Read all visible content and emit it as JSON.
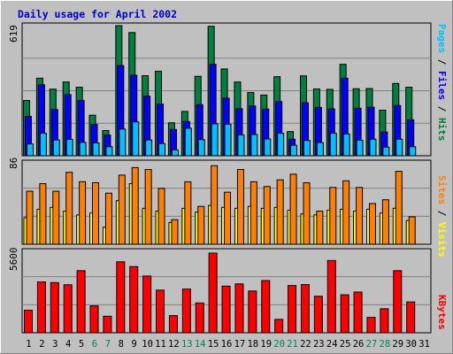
{
  "title": "Daily usage for April 2002",
  "colors": {
    "background": "#c0c0c0",
    "panel": "#c0c0c0",
    "grid": "#808080",
    "title": "#0000cc",
    "hits": "#008040",
    "files": "#0000ff",
    "pages": "#00c0ff",
    "visits": "#ffff00",
    "sites": "#ff8000",
    "kbytes": "#ff0000",
    "weekend_day": "#00805c",
    "weekday": "#000000"
  },
  "right_labels": {
    "top": {
      "pages": "Pages",
      "sep1": " / ",
      "files": "Files",
      "sep2": " / ",
      "hits": "Hits"
    },
    "middle": {
      "sites": "Sites",
      "sep": " / ",
      "visits": "Visits"
    },
    "bottom": {
      "kbytes": "KBytes"
    }
  },
  "chart_data": [
    {
      "type": "bar",
      "title": "Daily usage for April 2002",
      "ymax_label": "619",
      "ylim": [
        0,
        619
      ],
      "categories": [
        "1",
        "2",
        "3",
        "4",
        "5",
        "6",
        "7",
        "8",
        "9",
        "10",
        "11",
        "12",
        "13",
        "14",
        "15",
        "16",
        "17",
        "18",
        "19",
        "20",
        "21",
        "22",
        "23",
        "24",
        "25",
        "26",
        "27",
        "28",
        "29",
        "30",
        "31"
      ],
      "weekend_days": [
        "6",
        "7",
        "13",
        "14",
        "20",
        "21",
        "27",
        "28"
      ],
      "series": [
        {
          "name": "Hits",
          "values": [
            263,
            369,
            317,
            351,
            326,
            193,
            120,
            619,
            586,
            381,
            402,
            157,
            211,
            378,
            616,
            413,
            351,
            301,
            289,
            376,
            115,
            380,
            318,
            316,
            435,
            319,
            320,
            217,
            344,
            326,
            0
          ]
        },
        {
          "name": "Files",
          "values": [
            187,
            338,
            220,
            291,
            263,
            149,
            99,
            429,
            383,
            283,
            246,
            125,
            163,
            243,
            435,
            274,
            224,
            237,
            222,
            258,
            79,
            252,
            230,
            223,
            369,
            226,
            231,
            113,
            239,
            171,
            0
          ]
        },
        {
          "name": "Pages",
          "values": [
            56,
            107,
            75,
            78,
            64,
            61,
            43,
            127,
            161,
            75,
            58,
            28,
            131,
            77,
            152,
            150,
            99,
            101,
            80,
            107,
            50,
            73,
            63,
            107,
            104,
            74,
            79,
            41,
            79,
            43,
            0
          ]
        }
      ]
    },
    {
      "type": "bar",
      "ymax_label": "86",
      "ylim": [
        0,
        86
      ],
      "categories": [
        "1",
        "2",
        "3",
        "4",
        "5",
        "6",
        "7",
        "8",
        "9",
        "10",
        "11",
        "12",
        "13",
        "14",
        "15",
        "16",
        "17",
        "18",
        "19",
        "20",
        "21",
        "22",
        "23",
        "24",
        "25",
        "26",
        "27",
        "28",
        "29",
        "30",
        "31"
      ],
      "series": [
        {
          "name": "Visits",
          "values": [
            28,
            37,
            39,
            35,
            31,
            33,
            18,
            46,
            64,
            38,
            35,
            23,
            38,
            34,
            41,
            39,
            38,
            40,
            38,
            39,
            36,
            32,
            31,
            36,
            37,
            35,
            37,
            33,
            38,
            25,
            0
          ]
        },
        {
          "name": "Sites",
          "values": [
            56,
            64,
            56,
            76,
            66,
            65,
            54,
            73,
            81,
            79,
            59,
            26,
            66,
            40,
            83,
            55,
            79,
            66,
            61,
            68,
            74,
            65,
            35,
            60,
            67,
            60,
            43,
            47,
            77,
            29,
            0
          ]
        }
      ]
    },
    {
      "type": "bar",
      "ymax_label": "5600",
      "ylim": [
        0,
        5600
      ],
      "categories": [
        "1",
        "2",
        "3",
        "4",
        "5",
        "6",
        "7",
        "8",
        "9",
        "10",
        "11",
        "12",
        "13",
        "14",
        "15",
        "16",
        "17",
        "18",
        "19",
        "20",
        "21",
        "22",
        "23",
        "24",
        "25",
        "26",
        "27",
        "28",
        "29",
        "30",
        "31"
      ],
      "series": [
        {
          "name": "KBytes",
          "values": [
            1550,
            3500,
            3450,
            3300,
            4270,
            1850,
            1135,
            4880,
            4550,
            3900,
            2930,
            1180,
            3010,
            2050,
            5480,
            3210,
            3360,
            2870,
            3590,
            920,
            3250,
            3310,
            2510,
            4970,
            2610,
            2800,
            1060,
            1650,
            4270,
            2120,
            0
          ]
        }
      ]
    }
  ]
}
